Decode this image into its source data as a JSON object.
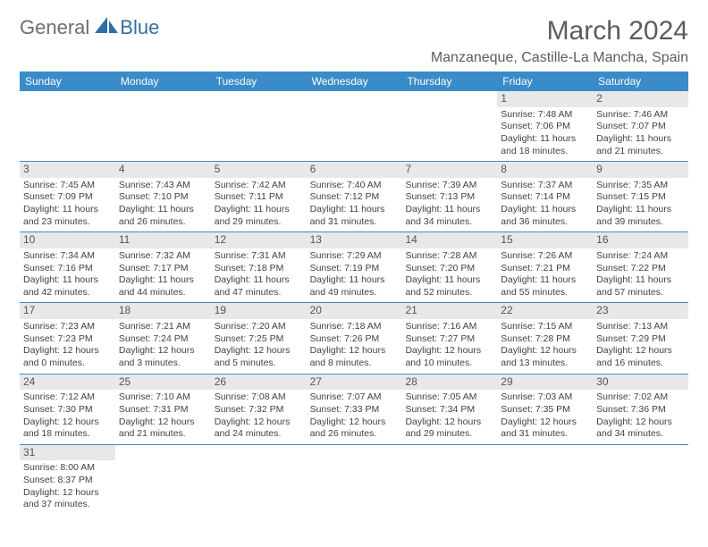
{
  "logo": {
    "general": "General",
    "blue": "Blue"
  },
  "title": "March 2024",
  "location": "Manzaneque, Castille-La Mancha, Spain",
  "colors": {
    "header_bg": "#3a8bc9",
    "header_text": "#ffffff",
    "daynum_bg": "#e8e8e8",
    "row_border": "#3a8bc9",
    "body_text": "#424242",
    "title_text": "#5a5c5e",
    "logo_general": "#6b6f72",
    "logo_blue": "#2f6fa8"
  },
  "typography": {
    "title_fontsize": 30,
    "location_fontsize": 16,
    "header_fontsize": 12,
    "cell_fontsize": 10.5
  },
  "weekdays": [
    "Sunday",
    "Monday",
    "Tuesday",
    "Wednesday",
    "Thursday",
    "Friday",
    "Saturday"
  ],
  "weeks": [
    [
      null,
      null,
      null,
      null,
      null,
      {
        "n": "1",
        "sunrise": "Sunrise: 7:48 AM",
        "sunset": "Sunset: 7:06 PM",
        "day1": "Daylight: 11 hours",
        "day2": "and 18 minutes."
      },
      {
        "n": "2",
        "sunrise": "Sunrise: 7:46 AM",
        "sunset": "Sunset: 7:07 PM",
        "day1": "Daylight: 11 hours",
        "day2": "and 21 minutes."
      }
    ],
    [
      {
        "n": "3",
        "sunrise": "Sunrise: 7:45 AM",
        "sunset": "Sunset: 7:09 PM",
        "day1": "Daylight: 11 hours",
        "day2": "and 23 minutes."
      },
      {
        "n": "4",
        "sunrise": "Sunrise: 7:43 AM",
        "sunset": "Sunset: 7:10 PM",
        "day1": "Daylight: 11 hours",
        "day2": "and 26 minutes."
      },
      {
        "n": "5",
        "sunrise": "Sunrise: 7:42 AM",
        "sunset": "Sunset: 7:11 PM",
        "day1": "Daylight: 11 hours",
        "day2": "and 29 minutes."
      },
      {
        "n": "6",
        "sunrise": "Sunrise: 7:40 AM",
        "sunset": "Sunset: 7:12 PM",
        "day1": "Daylight: 11 hours",
        "day2": "and 31 minutes."
      },
      {
        "n": "7",
        "sunrise": "Sunrise: 7:39 AM",
        "sunset": "Sunset: 7:13 PM",
        "day1": "Daylight: 11 hours",
        "day2": "and 34 minutes."
      },
      {
        "n": "8",
        "sunrise": "Sunrise: 7:37 AM",
        "sunset": "Sunset: 7:14 PM",
        "day1": "Daylight: 11 hours",
        "day2": "and 36 minutes."
      },
      {
        "n": "9",
        "sunrise": "Sunrise: 7:35 AM",
        "sunset": "Sunset: 7:15 PM",
        "day1": "Daylight: 11 hours",
        "day2": "and 39 minutes."
      }
    ],
    [
      {
        "n": "10",
        "sunrise": "Sunrise: 7:34 AM",
        "sunset": "Sunset: 7:16 PM",
        "day1": "Daylight: 11 hours",
        "day2": "and 42 minutes."
      },
      {
        "n": "11",
        "sunrise": "Sunrise: 7:32 AM",
        "sunset": "Sunset: 7:17 PM",
        "day1": "Daylight: 11 hours",
        "day2": "and 44 minutes."
      },
      {
        "n": "12",
        "sunrise": "Sunrise: 7:31 AM",
        "sunset": "Sunset: 7:18 PM",
        "day1": "Daylight: 11 hours",
        "day2": "and 47 minutes."
      },
      {
        "n": "13",
        "sunrise": "Sunrise: 7:29 AM",
        "sunset": "Sunset: 7:19 PM",
        "day1": "Daylight: 11 hours",
        "day2": "and 49 minutes."
      },
      {
        "n": "14",
        "sunrise": "Sunrise: 7:28 AM",
        "sunset": "Sunset: 7:20 PM",
        "day1": "Daylight: 11 hours",
        "day2": "and 52 minutes."
      },
      {
        "n": "15",
        "sunrise": "Sunrise: 7:26 AM",
        "sunset": "Sunset: 7:21 PM",
        "day1": "Daylight: 11 hours",
        "day2": "and 55 minutes."
      },
      {
        "n": "16",
        "sunrise": "Sunrise: 7:24 AM",
        "sunset": "Sunset: 7:22 PM",
        "day1": "Daylight: 11 hours",
        "day2": "and 57 minutes."
      }
    ],
    [
      {
        "n": "17",
        "sunrise": "Sunrise: 7:23 AM",
        "sunset": "Sunset: 7:23 PM",
        "day1": "Daylight: 12 hours",
        "day2": "and 0 minutes."
      },
      {
        "n": "18",
        "sunrise": "Sunrise: 7:21 AM",
        "sunset": "Sunset: 7:24 PM",
        "day1": "Daylight: 12 hours",
        "day2": "and 3 minutes."
      },
      {
        "n": "19",
        "sunrise": "Sunrise: 7:20 AM",
        "sunset": "Sunset: 7:25 PM",
        "day1": "Daylight: 12 hours",
        "day2": "and 5 minutes."
      },
      {
        "n": "20",
        "sunrise": "Sunrise: 7:18 AM",
        "sunset": "Sunset: 7:26 PM",
        "day1": "Daylight: 12 hours",
        "day2": "and 8 minutes."
      },
      {
        "n": "21",
        "sunrise": "Sunrise: 7:16 AM",
        "sunset": "Sunset: 7:27 PM",
        "day1": "Daylight: 12 hours",
        "day2": "and 10 minutes."
      },
      {
        "n": "22",
        "sunrise": "Sunrise: 7:15 AM",
        "sunset": "Sunset: 7:28 PM",
        "day1": "Daylight: 12 hours",
        "day2": "and 13 minutes."
      },
      {
        "n": "23",
        "sunrise": "Sunrise: 7:13 AM",
        "sunset": "Sunset: 7:29 PM",
        "day1": "Daylight: 12 hours",
        "day2": "and 16 minutes."
      }
    ],
    [
      {
        "n": "24",
        "sunrise": "Sunrise: 7:12 AM",
        "sunset": "Sunset: 7:30 PM",
        "day1": "Daylight: 12 hours",
        "day2": "and 18 minutes."
      },
      {
        "n": "25",
        "sunrise": "Sunrise: 7:10 AM",
        "sunset": "Sunset: 7:31 PM",
        "day1": "Daylight: 12 hours",
        "day2": "and 21 minutes."
      },
      {
        "n": "26",
        "sunrise": "Sunrise: 7:08 AM",
        "sunset": "Sunset: 7:32 PM",
        "day1": "Daylight: 12 hours",
        "day2": "and 24 minutes."
      },
      {
        "n": "27",
        "sunrise": "Sunrise: 7:07 AM",
        "sunset": "Sunset: 7:33 PM",
        "day1": "Daylight: 12 hours",
        "day2": "and 26 minutes."
      },
      {
        "n": "28",
        "sunrise": "Sunrise: 7:05 AM",
        "sunset": "Sunset: 7:34 PM",
        "day1": "Daylight: 12 hours",
        "day2": "and 29 minutes."
      },
      {
        "n": "29",
        "sunrise": "Sunrise: 7:03 AM",
        "sunset": "Sunset: 7:35 PM",
        "day1": "Daylight: 12 hours",
        "day2": "and 31 minutes."
      },
      {
        "n": "30",
        "sunrise": "Sunrise: 7:02 AM",
        "sunset": "Sunset: 7:36 PM",
        "day1": "Daylight: 12 hours",
        "day2": "and 34 minutes."
      }
    ],
    [
      {
        "n": "31",
        "sunrise": "Sunrise: 8:00 AM",
        "sunset": "Sunset: 8:37 PM",
        "day1": "Daylight: 12 hours",
        "day2": "and 37 minutes."
      },
      null,
      null,
      null,
      null,
      null,
      null
    ]
  ]
}
